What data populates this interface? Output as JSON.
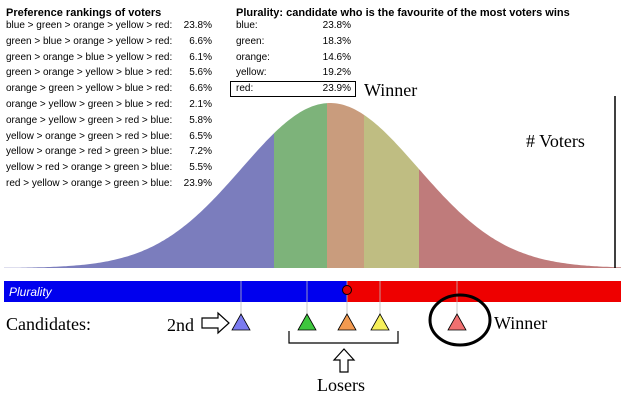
{
  "preferences": {
    "title": "Preference rankings of voters",
    "rows": [
      {
        "order": "blue > green > orange > yellow > red:",
        "pct": "23.8%"
      },
      {
        "order": "green > blue > orange > yellow > red:",
        "pct": "6.6%"
      },
      {
        "order": "green > orange > blue > yellow > red:",
        "pct": "6.1%"
      },
      {
        "order": "green > orange > yellow > blue > red:",
        "pct": "5.6%"
      },
      {
        "order": "orange > green > yellow > blue > red:",
        "pct": "6.6%"
      },
      {
        "order": "orange > yellow > green > blue > red:",
        "pct": "2.1%"
      },
      {
        "order": "orange > yellow > green > red > blue:",
        "pct": "5.8%"
      },
      {
        "order": "yellow > orange > green > red > blue:",
        "pct": "6.5%"
      },
      {
        "order": "yellow > orange > red > green > blue:",
        "pct": "7.2%"
      },
      {
        "order": "yellow > red > orange > green > blue:",
        "pct": "5.5%"
      },
      {
        "order": "red > yellow > orange > green > blue:",
        "pct": "23.9%"
      }
    ]
  },
  "plurality": {
    "title": "Plurality: candidate who is the favourite of the most voters wins",
    "rows": [
      {
        "name": "blue:",
        "pct": "23.8%"
      },
      {
        "name": "green:",
        "pct": "18.3%"
      },
      {
        "name": "orange:",
        "pct": "14.6%"
      },
      {
        "name": "yellow:",
        "pct": "19.2%"
      },
      {
        "name": "red:",
        "pct": "23.9%"
      }
    ]
  },
  "labels": {
    "winner_top": "Winner",
    "voters_axis": "# Voters",
    "bar": "Plurality",
    "candidates": "Candidates:",
    "second": "2nd",
    "losers": "Losers",
    "winner_bottom": "Winner"
  },
  "colors": {
    "blue_region": "#7b7dbd",
    "green_region": "#7db37a",
    "orange_region": "#c99c7d",
    "yellow_region": "#bfbd82",
    "red_region": "#bf7b7b",
    "bar_blue": "#0000ee",
    "bar_red": "#ee0000",
    "cand_blue": "#7b7bf0",
    "cand_green": "#3ec63e",
    "cand_orange": "#f39a50",
    "cand_yellow": "#f6f05a",
    "cand_red": "#f07070"
  }
}
